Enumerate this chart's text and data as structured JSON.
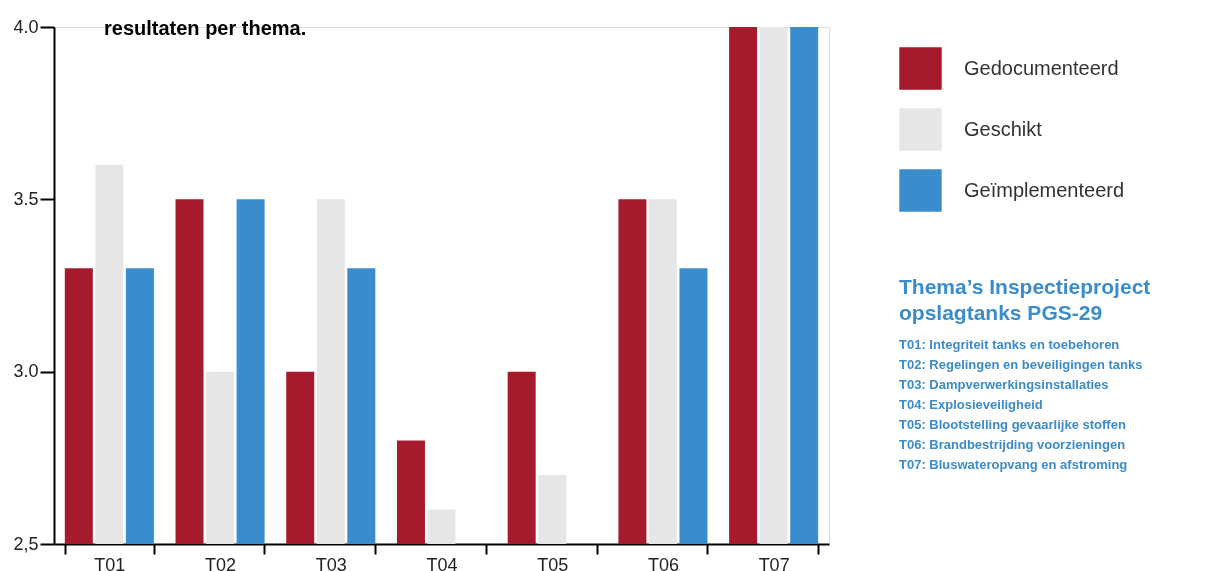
{
  "chart_data": {
    "type": "bar",
    "title": "resultaten per thema.",
    "categories": [
      "T01",
      "T02",
      "T03",
      "T04",
      "T05",
      "T06",
      "T07"
    ],
    "series": [
      {
        "name": "Gedocumenteerd",
        "color": "#a61a2e",
        "values": [
          3.3,
          3.5,
          3.0,
          2.8,
          3.0,
          3.5,
          4.0
        ]
      },
      {
        "name": "Geschikt",
        "color": "#e6e6e6",
        "values": [
          3.6,
          3.0,
          3.5,
          2.6,
          2.7,
          3.5,
          4.0
        ]
      },
      {
        "name": "Geïmplementeerd",
        "color": "#3a8ccc",
        "values": [
          3.3,
          3.5,
          3.3,
          null,
          null,
          3.3,
          4.0
        ]
      }
    ],
    "ylim": [
      2.5,
      4.0
    ],
    "yticks": [
      {
        "value": 2.5,
        "label": "2,5"
      },
      {
        "value": 3,
        "label": "3.0"
      },
      {
        "value": 3.5,
        "label": "3.5"
      },
      {
        "value": 4,
        "label": "4.0"
      }
    ],
    "grid": false,
    "legend": "right",
    "annotations": [
      "Thema’s Inspectieproject\nopslagtanks PGS-29",
      "T01: Integriteit tanks en toebehoren",
      "T02: Regelingen en beveiligingen tanks",
      "T03: Dampverwerkingsinstallaties",
      "T04: Explosieveiligheid",
      "T05: Blootstelling gevaarlijke stoffen",
      "T06: Brandbestrijding voorzieningen",
      "T07: Bluswateropvang en afstroming"
    ]
  }
}
